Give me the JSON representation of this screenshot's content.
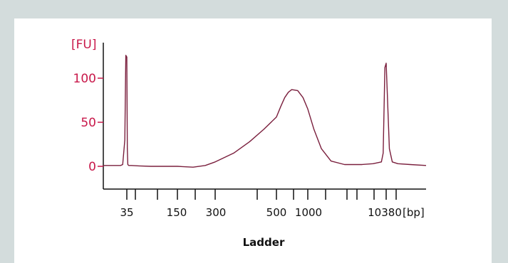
{
  "chart_data": {
    "type": "line",
    "y_unit": "[FU]",
    "x_unit": "[bp]",
    "xlabel": "Ladder",
    "ylim": [
      -10,
      130
    ],
    "y_ticks": [
      0,
      50,
      100
    ],
    "x_tick_labels": [
      "35",
      "150",
      "300",
      "500",
      "1000",
      "10380"
    ],
    "series": [
      {
        "x": [
          25,
          30,
          32,
          33,
          34,
          34.5,
          35,
          35.5,
          36,
          37,
          40,
          50,
          70,
          100,
          150,
          200,
          250,
          300,
          350,
          400,
          450,
          500,
          550,
          600,
          650,
          700,
          800,
          900,
          1000,
          1200,
          1500,
          2000,
          3000,
          5000,
          7000,
          9000,
          9500,
          10000,
          10380,
          10800,
          11200,
          12000,
          14000,
          17000
        ],
        "y": [
          1,
          1,
          1,
          2,
          30,
          126,
          124,
          20,
          2,
          1,
          1,
          0.5,
          0,
          0,
          0,
          -1,
          1,
          5,
          15,
          28,
          42,
          56,
          68,
          78,
          84,
          87,
          86,
          78,
          65,
          42,
          20,
          6,
          2,
          2,
          3,
          5,
          15,
          112,
          117,
          20,
          5,
          3,
          2,
          1
        ]
      }
    ],
    "colors": {
      "axis": "#c8184a",
      "line": "#7a1f3d"
    }
  }
}
